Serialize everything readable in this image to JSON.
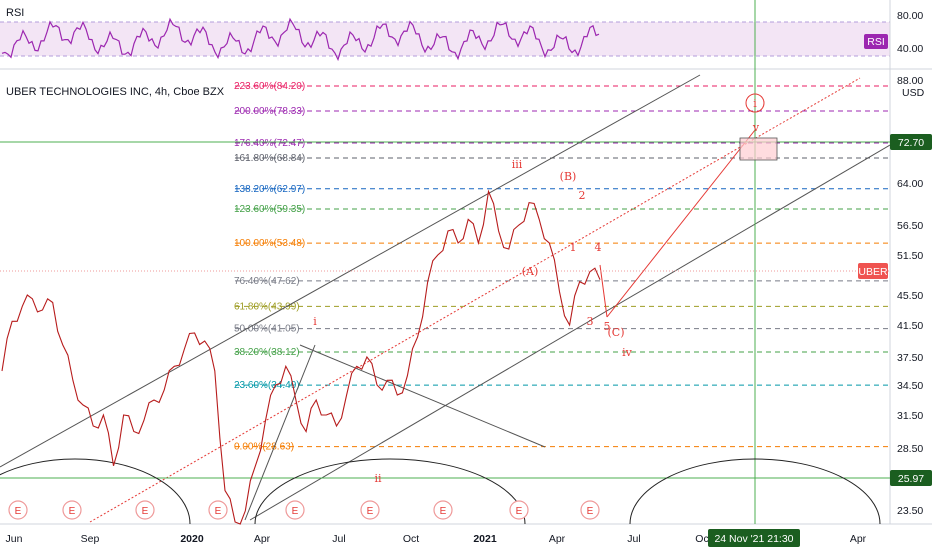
{
  "header": {
    "title": "UBER TECHNOLOGIES INC, 4h, Cboe BZX",
    "rsi_label": "RSI"
  },
  "colors": {
    "rsi": "#9c27b0",
    "rsi_band": "#e1bee7",
    "price_tag": "#ef5350",
    "marker_green": "#4caf50",
    "axis_green": "#1b5e20"
  },
  "chart_data": {
    "type": "line",
    "price_scale": {
      "currency": "USD",
      "ticks": [
        "88.00",
        "64.00",
        "56.50",
        "51.50",
        "45.50",
        "41.50",
        "37.50",
        "34.50",
        "31.50",
        "28.50",
        "23.50"
      ],
      "marker_tags": [
        {
          "value": "72.70",
          "style": "green-box"
        },
        {
          "value": "UBER",
          "style": "red-box"
        },
        {
          "value": "25.97",
          "style": "green-box"
        }
      ]
    },
    "rsi_scale": {
      "ticks": [
        "80.00",
        "40.00"
      ],
      "tag": "RSI"
    },
    "time_axis": {
      "labels": [
        "Jun",
        "Sep",
        "2020",
        "Apr",
        "Jul",
        "Oct",
        "2021",
        "Apr",
        "Jul",
        "Oc",
        "Apr"
      ],
      "highlight": "24 Nov '21  21:30"
    },
    "fib_levels": [
      {
        "ratio": "223.60%",
        "price": "84.20",
        "color": "#e91e63"
      },
      {
        "ratio": "200.00%",
        "price": "78.33",
        "color": "#9c27b0"
      },
      {
        "ratio": "176.40%",
        "price": "72.47",
        "color": "#9c27b0"
      },
      {
        "ratio": "161.80%",
        "price": "68.84",
        "color": "#5d606b"
      },
      {
        "ratio": "138.20%",
        "price": "62.97",
        "color": "#1565c0"
      },
      {
        "ratio": "123.60%",
        "price": "59.35",
        "color": "#43a047"
      },
      {
        "ratio": "100.00%",
        "price": "53.48",
        "color": "#f57c00"
      },
      {
        "ratio": "76.40%",
        "price": "47.62",
        "color": "#787b86"
      },
      {
        "ratio": "61.80%",
        "price": "43.99",
        "color": "#9e9d24"
      },
      {
        "ratio": "50.00%",
        "price": "41.05",
        "color": "#787b86"
      },
      {
        "ratio": "38.20%",
        "price": "38.12",
        "color": "#43a047"
      },
      {
        "ratio": "23.60%",
        "price": "34.49",
        "color": "#0097a7"
      },
      {
        "ratio": "0.00%",
        "price": "28.63",
        "color": "#f57c00"
      }
    ],
    "wave_labels": [
      "i",
      "ii",
      "iii",
      "iv",
      "v",
      "(A)",
      "(B)",
      "(C)",
      "1",
      "2",
      "3",
      "4",
      "5"
    ],
    "event_marker": "E",
    "price_series": [
      {
        "x": 0,
        "y": 36.0
      },
      {
        "x": 1,
        "y": 42.0
      },
      {
        "x": 2,
        "y": 44.0
      },
      {
        "x": 3,
        "y": 45.0
      },
      {
        "x": 4,
        "y": 43.5
      },
      {
        "x": 5,
        "y": 44.5
      },
      {
        "x": 6,
        "y": 39.0
      },
      {
        "x": 7,
        "y": 35.0
      },
      {
        "x": 8,
        "y": 32.5
      },
      {
        "x": 9,
        "y": 30.5
      },
      {
        "x": 10,
        "y": 31.5
      },
      {
        "x": 11,
        "y": 27.0
      },
      {
        "x": 12,
        "y": 31.5
      },
      {
        "x": 13,
        "y": 30.0
      },
      {
        "x": 14,
        "y": 31.0
      },
      {
        "x": 15,
        "y": 33.0
      },
      {
        "x": 16,
        "y": 34.0
      },
      {
        "x": 17,
        "y": 36.5
      },
      {
        "x": 18,
        "y": 38.5
      },
      {
        "x": 19,
        "y": 40.5
      },
      {
        "x": 20,
        "y": 39.5
      },
      {
        "x": 21,
        "y": 36.0
      },
      {
        "x": 22,
        "y": 25.0
      },
      {
        "x": 23,
        "y": 17.0
      },
      {
        "x": 24,
        "y": 23.0
      },
      {
        "x": 25,
        "y": 27.0
      },
      {
        "x": 26,
        "y": 31.0
      },
      {
        "x": 27,
        "y": 34.5
      },
      {
        "x": 28,
        "y": 36.5
      },
      {
        "x": 29,
        "y": 33.0
      },
      {
        "x": 30,
        "y": 30.0
      },
      {
        "x": 31,
        "y": 33.0
      },
      {
        "x": 32,
        "y": 31.5
      },
      {
        "x": 33,
        "y": 30.5
      },
      {
        "x": 34,
        "y": 33.5
      },
      {
        "x": 35,
        "y": 36.5
      },
      {
        "x": 36,
        "y": 37.5
      },
      {
        "x": 37,
        "y": 34.5
      },
      {
        "x": 38,
        "y": 35.0
      },
      {
        "x": 39,
        "y": 33.5
      },
      {
        "x": 40,
        "y": 35.5
      },
      {
        "x": 41,
        "y": 40.0
      },
      {
        "x": 42,
        "y": 47.5
      },
      {
        "x": 43,
        "y": 51.5
      },
      {
        "x": 44,
        "y": 55.5
      },
      {
        "x": 45,
        "y": 53.5
      },
      {
        "x": 46,
        "y": 57.5
      },
      {
        "x": 47,
        "y": 53.5
      },
      {
        "x": 48,
        "y": 62.5
      },
      {
        "x": 49,
        "y": 55.5
      },
      {
        "x": 50,
        "y": 52.5
      },
      {
        "x": 51,
        "y": 56.5
      },
      {
        "x": 52,
        "y": 60.5
      },
      {
        "x": 53,
        "y": 57.5
      },
      {
        "x": 54,
        "y": 53.5
      },
      {
        "x": 55,
        "y": 46.0
      },
      {
        "x": 56,
        "y": 41.5
      },
      {
        "x": 57,
        "y": 47.5
      },
      {
        "x": 58,
        "y": 49.0
      },
      {
        "x": 59,
        "y": 47.8
      }
    ]
  }
}
